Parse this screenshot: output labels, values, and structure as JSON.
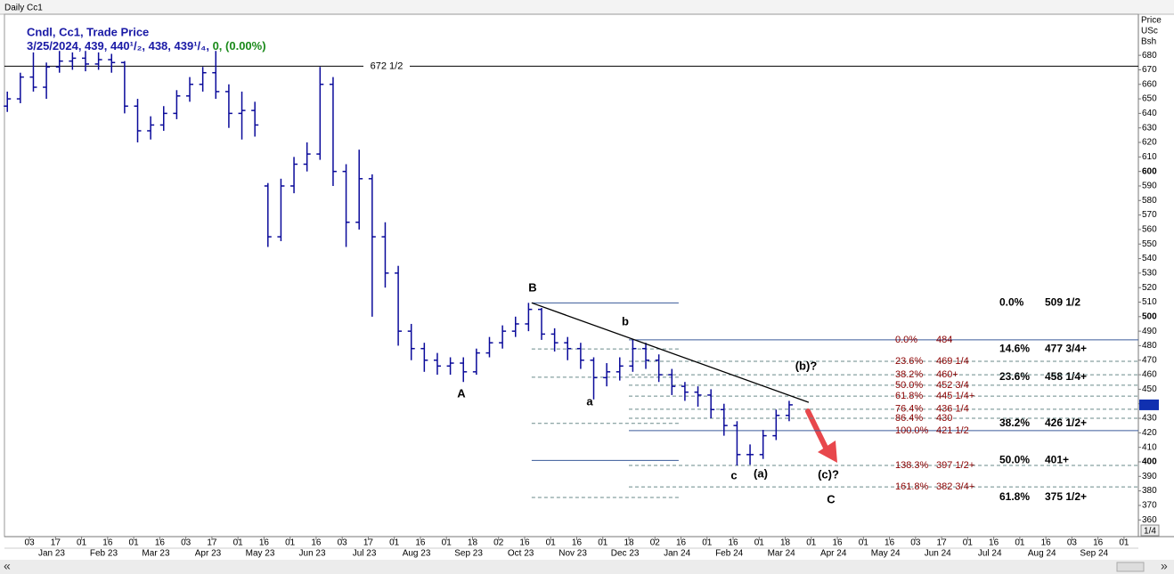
{
  "chart_data": {
    "type": "candlestick",
    "title": "Daily Cc1",
    "legend": {
      "name": "Cndl, Cc1, Trade Price",
      "info": "3/25/2024, 439, 440¹/₂, 438, 439¹/₄,",
      "change": "0, (0.00%)"
    },
    "price_axis_title": [
      "Price",
      "USc",
      "Bsh"
    ],
    "page_indicator": "1/4",
    "color": "#0a0a9a",
    "x": [
      -0.85,
      -0.35,
      0.15,
      0.65,
      1.15,
      1.65,
      2.15,
      2.65,
      3.15,
      3.65,
      4.15,
      4.65,
      5.15,
      5.65,
      6.15,
      6.65,
      7.15,
      7.65,
      8.15,
      8.65,
      9.15,
      9.65,
      10.15,
      10.65,
      11.15,
      11.65,
      12.15,
      12.65,
      13.15,
      13.65,
      14.15,
      14.65,
      15.15,
      15.65,
      16.15,
      16.65,
      17.15,
      17.65,
      18.15,
      18.65,
      19.15,
      19.65,
      20.15,
      20.65,
      21.15,
      21.65,
      22.15,
      22.65,
      23.15,
      23.65,
      24.15,
      24.65,
      25.15,
      25.65,
      26.15,
      26.65,
      27.15,
      27.65,
      28.15,
      28.65,
      29.15
    ],
    "open": [
      645,
      650,
      665,
      658,
      672,
      676,
      678,
      674,
      677,
      675,
      645,
      628,
      632,
      640,
      652,
      660,
      668,
      655,
      640,
      642,
      590,
      555,
      590,
      605,
      612,
      660,
      600,
      565,
      595,
      555,
      530,
      490,
      478,
      470,
      466,
      468,
      462,
      475,
      482,
      490,
      495,
      505,
      488,
      482,
      478,
      470,
      458,
      462,
      466,
      478,
      470,
      460,
      452,
      448,
      446,
      436,
      425,
      405,
      405,
      418,
      432
    ],
    "high": [
      655,
      668,
      682,
      675,
      683,
      682,
      683,
      682,
      681,
      676,
      650,
      638,
      645,
      656,
      665,
      672,
      683,
      660,
      655,
      648,
      592,
      595,
      610,
      620,
      672,
      665,
      605,
      615,
      598,
      565,
      535,
      495,
      482,
      475,
      472,
      472,
      478,
      486,
      494,
      500,
      509.5,
      506,
      492,
      486,
      482,
      472,
      468,
      472,
      484,
      482,
      474,
      464,
      455,
      452,
      450,
      440,
      428,
      412,
      422,
      436,
      442
    ],
    "low": [
      641,
      647,
      655,
      650,
      668,
      670,
      669,
      670,
      668,
      640,
      620,
      622,
      628,
      636,
      648,
      655,
      650,
      630,
      622,
      624,
      548,
      552,
      585,
      600,
      608,
      590,
      548,
      560,
      500,
      520,
      480,
      470,
      462,
      460,
      460,
      455,
      460,
      472,
      478,
      486,
      490,
      484,
      476,
      470,
      464,
      443,
      452,
      456,
      462,
      464,
      455,
      446,
      442,
      438,
      430,
      418,
      397.5,
      398,
      402,
      415,
      428
    ],
    "close": [
      650,
      665,
      658,
      672,
      676,
      678,
      674,
      677,
      675,
      645,
      628,
      632,
      640,
      652,
      660,
      668,
      655,
      640,
      642,
      632,
      555,
      590,
      605,
      612,
      660,
      600,
      565,
      595,
      555,
      530,
      490,
      478,
      470,
      466,
      468,
      462,
      475,
      482,
      490,
      495,
      505,
      488,
      482,
      478,
      470,
      458,
      462,
      466,
      478,
      470,
      460,
      452,
      448,
      446,
      436,
      425,
      405,
      405,
      418,
      432,
      439.25
    ],
    "xlim": [
      -0.96,
      42.55
    ],
    "ylim": [
      348.5,
      709.5
    ],
    "yticks": [
      360,
      370,
      380,
      390,
      400,
      410,
      420,
      430,
      440,
      450,
      460,
      470,
      480,
      490,
      500,
      510,
      520,
      530,
      540,
      550,
      560,
      570,
      580,
      590,
      600,
      610,
      620,
      630,
      640,
      650,
      660,
      670,
      680
    ],
    "xticks": [
      {
        "value": 0,
        "label": "03"
      },
      {
        "value": 1,
        "label": "17"
      },
      {
        "value": 2,
        "label": "01"
      },
      {
        "value": 3,
        "label": "16"
      },
      {
        "value": 4,
        "label": "01"
      },
      {
        "value": 5,
        "label": "16"
      },
      {
        "value": 6,
        "label": "03"
      },
      {
        "value": 7,
        "label": "17"
      },
      {
        "value": 8,
        "label": "01"
      },
      {
        "value": 9,
        "label": "16"
      },
      {
        "value": 10,
        "label": "01"
      },
      {
        "value": 11,
        "label": "16"
      },
      {
        "value": 12,
        "label": "03"
      },
      {
        "value": 13,
        "label": "17"
      },
      {
        "value": 14,
        "label": "01"
      },
      {
        "value": 15,
        "label": "16"
      },
      {
        "value": 16,
        "label": "01"
      },
      {
        "value": 17,
        "label": "18"
      },
      {
        "value": 18,
        "label": "02"
      },
      {
        "value": 19,
        "label": "16"
      },
      {
        "value": 20,
        "label": "01"
      },
      {
        "value": 21,
        "label": "16"
      },
      {
        "value": 22,
        "label": "01"
      },
      {
        "value": 23,
        "label": "18"
      },
      {
        "value": 24,
        "label": "02"
      },
      {
        "value": 25,
        "label": "16"
      },
      {
        "value": 26,
        "label": "01"
      },
      {
        "value": 27,
        "label": "16"
      },
      {
        "value": 28,
        "label": "01"
      },
      {
        "value": 29,
        "label": "18"
      },
      {
        "value": 30,
        "label": "01"
      },
      {
        "value": 31,
        "label": "16"
      },
      {
        "value": 32,
        "label": "01"
      },
      {
        "value": 33,
        "label": "16"
      },
      {
        "value": 34,
        "label": "03"
      },
      {
        "value": 35,
        "label": "17"
      },
      {
        "value": 36,
        "label": "01"
      },
      {
        "value": 37,
        "label": "16"
      },
      {
        "value": 38,
        "label": "01"
      },
      {
        "value": 39,
        "label": "16"
      },
      {
        "value": 40,
        "label": "03"
      },
      {
        "value": 41,
        "label": "16"
      },
      {
        "value": 42,
        "label": "01"
      }
    ],
    "months": [
      "Jan 23",
      "Feb 23",
      "Mar 23",
      "Apr 23",
      "May 23",
      "Jun 23",
      "Jul 23",
      "Aug 23",
      "Sep 23",
      "Oct 23",
      "Nov 23",
      "Dec 23",
      "Jan 24",
      "Feb 24",
      "Mar 24",
      "Apr 24",
      "May 24",
      "Jun 24",
      "Jul 24",
      "Aug 24",
      "Sep 24"
    ],
    "hlines": [
      {
        "value": 672.5,
        "label": "672 1/2"
      }
    ],
    "trendline": {
      "x": [
        19.27,
        29.9
      ],
      "y": [
        509.5,
        441
      ]
    },
    "fib_sets": [
      {
        "x_range": [
          19.27,
          24.91
        ],
        "levels": [
          {
            "ratio": "0.0%",
            "value": 509.5,
            "value_label": "509 1/2",
            "style": "solid"
          },
          {
            "ratio": "14.6%",
            "value": 477.75,
            "value_label": "477 3/4+",
            "style": "dashed"
          },
          {
            "ratio": "23.6%",
            "value": 458.25,
            "value_label": "458 1/4+",
            "style": "dashed"
          },
          {
            "ratio": "38.2%",
            "value": 426.5,
            "value_label": "426 1/2+",
            "style": "dashed"
          },
          {
            "ratio": "50.0%",
            "value": 401,
            "value_label": "401+",
            "style": "solid"
          },
          {
            "ratio": "61.8%",
            "value": 375.5,
            "value_label": "375 1/2+",
            "style": "dashed"
          }
        ]
      },
      {
        "x_range": [
          23.0,
          42.55
        ],
        "levels": [
          {
            "ratio": "0.0%",
            "value": 484,
            "value_label": "484",
            "style": "solid"
          },
          {
            "ratio": "23.6%",
            "value": 469.25,
            "value_label": "469 1/4",
            "style": "dashed"
          },
          {
            "ratio": "38.2%",
            "value": 460,
            "value_label": "460+",
            "style": "dashed"
          },
          {
            "ratio": "50.0%",
            "value": 452.75,
            "value_label": "452 3/4",
            "style": "dashed"
          },
          {
            "ratio": "61.8%",
            "value": 445.25,
            "value_label": "445 1/4+",
            "style": "dashed"
          },
          {
            "ratio": "76.4%",
            "value": 436.25,
            "value_label": "436 1/4",
            "style": "dashed"
          },
          {
            "ratio": "86.4%",
            "value": 430,
            "value_label": "430",
            "style": "dashed"
          },
          {
            "ratio": "100.0%",
            "value": 421.5,
            "value_label": "421 1/2",
            "style": "solid"
          },
          {
            "ratio": "138.3%",
            "value": 397.5,
            "value_label": "397 1/2+",
            "style": "dashed"
          },
          {
            "ratio": "161.8%",
            "value": 382.75,
            "value_label": "382 3/4+",
            "style": "dashed"
          }
        ]
      }
    ],
    "annotations": [
      "B",
      "A",
      "a",
      "b",
      "c",
      "(a)",
      "(b)?",
      "(c)?",
      "C"
    ]
  }
}
